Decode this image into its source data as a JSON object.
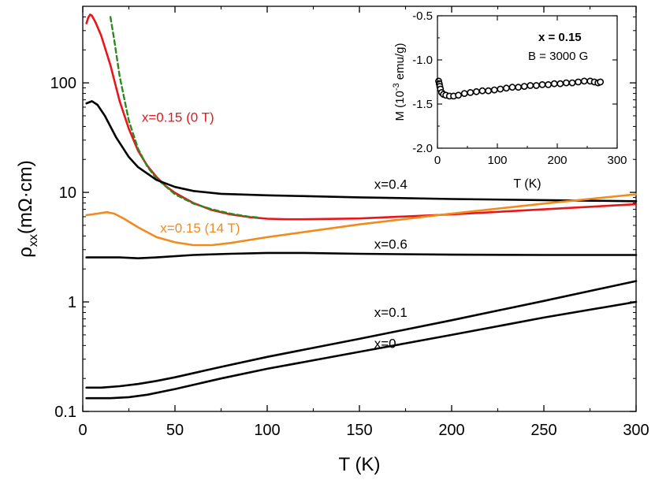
{
  "chart_data": [
    {
      "type": "line",
      "title": "",
      "xlabel": "T (K)",
      "ylabel_main": "ρ",
      "ylabel_sub": "xx",
      "ylabel_unit": "(mΩ·cm)",
      "yscale": "log",
      "xlim": [
        0,
        300
      ],
      "ylim": [
        0.1,
        500
      ],
      "x_ticks": [
        0,
        50,
        100,
        150,
        200,
        250,
        300
      ],
      "x_tick_labels": [
        "0",
        "50",
        "100",
        "150",
        "200",
        "250",
        "300"
      ],
      "y_ticks": [
        0.1,
        1,
        10,
        100
      ],
      "y_tick_labels": [
        "0.1",
        "1",
        "10",
        "100"
      ],
      "grid": false,
      "series": [
        {
          "name": "x=0.15 (0 T)",
          "color": "#e8161b",
          "style": "solid",
          "points": [
            [
              2,
              350
            ],
            [
              3,
              395
            ],
            [
              4,
              420
            ],
            [
              5,
              410
            ],
            [
              7,
              355
            ],
            [
              10,
              270
            ],
            [
              15,
              145
            ],
            [
              20,
              68
            ],
            [
              25,
              38
            ],
            [
              30,
              24
            ],
            [
              35,
              17.5
            ],
            [
              40,
              13.8
            ],
            [
              45,
              11.4
            ],
            [
              50,
              9.9
            ],
            [
              60,
              8.0
            ],
            [
              70,
              6.9
            ],
            [
              80,
              6.3
            ],
            [
              90,
              5.95
            ],
            [
              100,
              5.75
            ],
            [
              110,
              5.68
            ],
            [
              120,
              5.68
            ],
            [
              150,
              5.78
            ],
            [
              200,
              6.3
            ],
            [
              250,
              7.0
            ],
            [
              300,
              7.8
            ]
          ]
        },
        {
          "name": "",
          "color": "#2a8a1e",
          "style": "dashed",
          "points": [
            [
              15,
              400
            ],
            [
              17,
              250
            ],
            [
              20,
              115
            ],
            [
              25,
              45
            ],
            [
              30,
              25
            ],
            [
              35,
              17.2
            ],
            [
              40,
              13.4
            ],
            [
              50,
              9.6
            ],
            [
              60,
              7.9
            ],
            [
              70,
              7.0
            ],
            [
              80,
              6.4
            ],
            [
              90,
              6.0
            ],
            [
              95,
              5.9
            ]
          ]
        },
        {
          "name": "x=0.4",
          "color": "#000000",
          "style": "solid",
          "points": [
            [
              2,
              65
            ],
            [
              5,
              68
            ],
            [
              8,
              63
            ],
            [
              12,
              50
            ],
            [
              18,
              32
            ],
            [
              25,
              21
            ],
            [
              30,
              17
            ],
            [
              40,
              13
            ],
            [
              50,
              11.2
            ],
            [
              60,
              10.3
            ],
            [
              75,
              9.7
            ],
            [
              100,
              9.4
            ],
            [
              150,
              9.0
            ],
            [
              200,
              8.7
            ],
            [
              250,
              8.5
            ],
            [
              300,
              8.3
            ]
          ]
        },
        {
          "name": "x=0.15 (14 T)",
          "color": "#f28a1c",
          "style": "solid",
          "points": [
            [
              2,
              6.2
            ],
            [
              5,
              6.3
            ],
            [
              8,
              6.4
            ],
            [
              13,
              6.6
            ],
            [
              17,
              6.4
            ],
            [
              22,
              5.8
            ],
            [
              30,
              4.8
            ],
            [
              40,
              3.9
            ],
            [
              50,
              3.5
            ],
            [
              60,
              3.3
            ],
            [
              70,
              3.3
            ],
            [
              80,
              3.45
            ],
            [
              100,
              3.9
            ],
            [
              150,
              5.1
            ],
            [
              200,
              6.4
            ],
            [
              250,
              7.9
            ],
            [
              300,
              9.6
            ]
          ]
        },
        {
          "name": "x=0.6",
          "color": "#000000",
          "style": "solid",
          "points": [
            [
              2,
              2.55
            ],
            [
              20,
              2.55
            ],
            [
              30,
              2.5
            ],
            [
              40,
              2.55
            ],
            [
              60,
              2.68
            ],
            [
              80,
              2.75
            ],
            [
              100,
              2.8
            ],
            [
              120,
              2.8
            ],
            [
              150,
              2.75
            ],
            [
              200,
              2.7
            ],
            [
              250,
              2.68
            ],
            [
              300,
              2.68
            ]
          ]
        },
        {
          "name": "x=0.1",
          "color": "#000000",
          "style": "solid",
          "points": [
            [
              2,
              0.165
            ],
            [
              10,
              0.165
            ],
            [
              20,
              0.17
            ],
            [
              30,
              0.178
            ],
            [
              40,
              0.19
            ],
            [
              50,
              0.205
            ],
            [
              75,
              0.255
            ],
            [
              100,
              0.315
            ],
            [
              150,
              0.46
            ],
            [
              200,
              0.68
            ],
            [
              250,
              1.02
            ],
            [
              300,
              1.55
            ]
          ]
        },
        {
          "name": "x=0",
          "color": "#000000",
          "style": "solid",
          "points": [
            [
              2,
              0.132
            ],
            [
              15,
              0.132
            ],
            [
              25,
              0.135
            ],
            [
              35,
              0.142
            ],
            [
              50,
              0.16
            ],
            [
              75,
              0.2
            ],
            [
              100,
              0.245
            ],
            [
              150,
              0.35
            ],
            [
              200,
              0.5
            ],
            [
              250,
              0.72
            ],
            [
              300,
              1.0
            ]
          ]
        }
      ],
      "labels": [
        {
          "text": "x=0.15 (0 T)",
          "color": "#e8161b",
          "x": 32,
          "y": 44
        },
        {
          "text": "x=0.4",
          "color": "#000000",
          "x": 158,
          "y": 10.8
        },
        {
          "text": "x=0.15 (14 T)",
          "color": "#f28a1c",
          "x": 42,
          "y": 4.3
        },
        {
          "text": "x=0.6",
          "color": "#000000",
          "x": 158,
          "y": 3.05
        },
        {
          "text": "x=0.1",
          "color": "#000000",
          "x": 158,
          "y": 0.73
        },
        {
          "text": "x=0",
          "color": "#000000",
          "x": 158,
          "y": 0.38
        }
      ]
    },
    {
      "type": "scatter",
      "title": "",
      "xlabel": "T (K)",
      "ylabel_prefix": "M (10",
      "ylabel_exp": "-3",
      "ylabel_suffix": " emu/g)",
      "xlim": [
        0,
        300
      ],
      "ylim": [
        -2.0,
        -0.5
      ],
      "x_ticks": [
        0,
        100,
        200,
        300
      ],
      "x_tick_labels": [
        "0",
        "100",
        "200",
        "300"
      ],
      "y_ticks": [
        -2.0,
        -1.5,
        -1.0,
        -0.5
      ],
      "y_tick_labels": [
        "-2.0",
        "-1.5",
        "-1.0",
        "-0.5"
      ],
      "annotation_line1": "x = 0.15",
      "annotation_line2": "B = 3000 G",
      "marker": "open-circle",
      "color": "#000000",
      "points": [
        [
          2,
          -1.24
        ],
        [
          3,
          -1.27
        ],
        [
          4,
          -1.3
        ],
        [
          5,
          -1.33
        ],
        [
          7,
          -1.37
        ],
        [
          10,
          -1.39
        ],
        [
          14,
          -1.4
        ],
        [
          20,
          -1.41
        ],
        [
          27,
          -1.41
        ],
        [
          35,
          -1.4
        ],
        [
          45,
          -1.38
        ],
        [
          55,
          -1.37
        ],
        [
          65,
          -1.36
        ],
        [
          75,
          -1.35
        ],
        [
          85,
          -1.35
        ],
        [
          95,
          -1.34
        ],
        [
          105,
          -1.33
        ],
        [
          115,
          -1.32
        ],
        [
          125,
          -1.31
        ],
        [
          135,
          -1.31
        ],
        [
          145,
          -1.3
        ],
        [
          155,
          -1.29
        ],
        [
          165,
          -1.29
        ],
        [
          175,
          -1.28
        ],
        [
          185,
          -1.28
        ],
        [
          195,
          -1.27
        ],
        [
          205,
          -1.27
        ],
        [
          215,
          -1.26
        ],
        [
          225,
          -1.26
        ],
        [
          235,
          -1.25
        ],
        [
          245,
          -1.24
        ],
        [
          255,
          -1.24
        ],
        [
          262,
          -1.25
        ],
        [
          268,
          -1.26
        ],
        [
          272,
          -1.25
        ]
      ]
    }
  ]
}
